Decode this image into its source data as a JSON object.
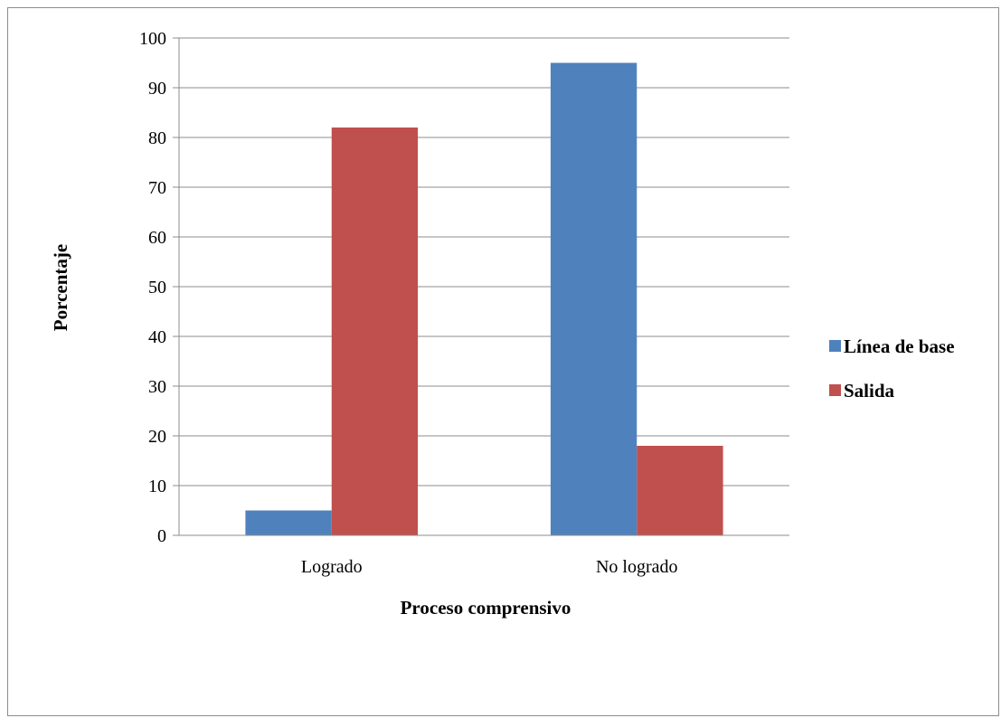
{
  "chart_data": {
    "type": "bar",
    "title": "",
    "xlabel": "Proceso comprensivo",
    "ylabel": "Porcentaje",
    "categories": [
      "Logrado",
      "No logrado"
    ],
    "series": [
      {
        "name": "Línea de base",
        "color": "#4f81bd",
        "values": [
          5,
          95
        ]
      },
      {
        "name": "Salida",
        "color": "#c0504d",
        "values": [
          82,
          18
        ]
      }
    ],
    "ylim": [
      0,
      100
    ],
    "yticks": [
      0,
      10,
      20,
      30,
      40,
      50,
      60,
      70,
      80,
      90,
      100
    ],
    "grid": true,
    "legend": "right"
  }
}
